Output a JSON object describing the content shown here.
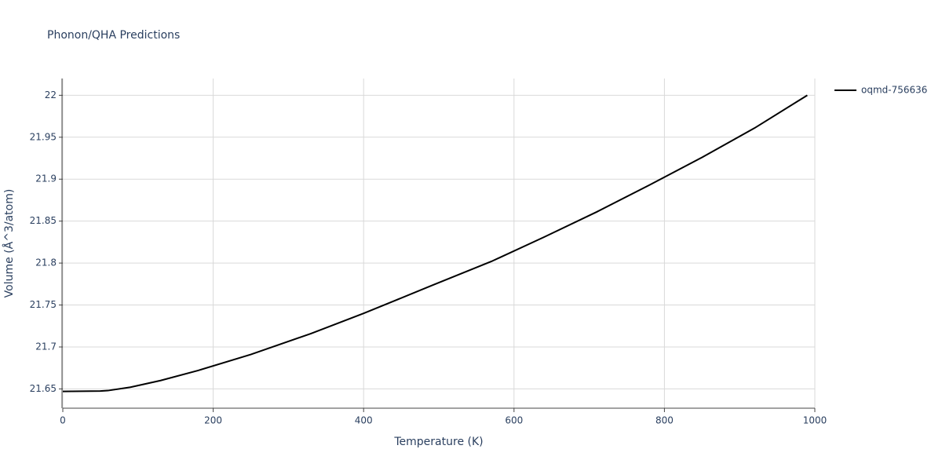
{
  "chart_data": {
    "type": "line",
    "title": "Phonon/QHA Predictions",
    "x_label": "Temperature (K)",
    "y_label": "Volume (Å^3/atom)",
    "x": [
      0,
      50,
      60,
      90,
      130,
      180,
      250,
      330,
      400,
      490,
      570,
      640,
      710,
      780,
      850,
      920,
      990
    ],
    "series": [
      {
        "name": "oqmd-756636",
        "color": "#000000",
        "values": [
          21.647,
          21.6475,
          21.648,
          21.652,
          21.66,
          21.672,
          21.691,
          21.716,
          21.74,
          21.773,
          21.802,
          21.831,
          21.861,
          21.893,
          21.926,
          21.961,
          22.0
        ]
      }
    ],
    "xlim": [
      0,
      1000
    ],
    "xticks": [
      0,
      200,
      400,
      600,
      800,
      1000
    ],
    "ylim": [
      21.627,
      22.02
    ],
    "yticks": [
      21.65,
      21.7,
      21.75,
      21.8,
      21.85,
      21.9,
      21.95,
      22
    ],
    "grid": true,
    "legend": "top-right"
  }
}
